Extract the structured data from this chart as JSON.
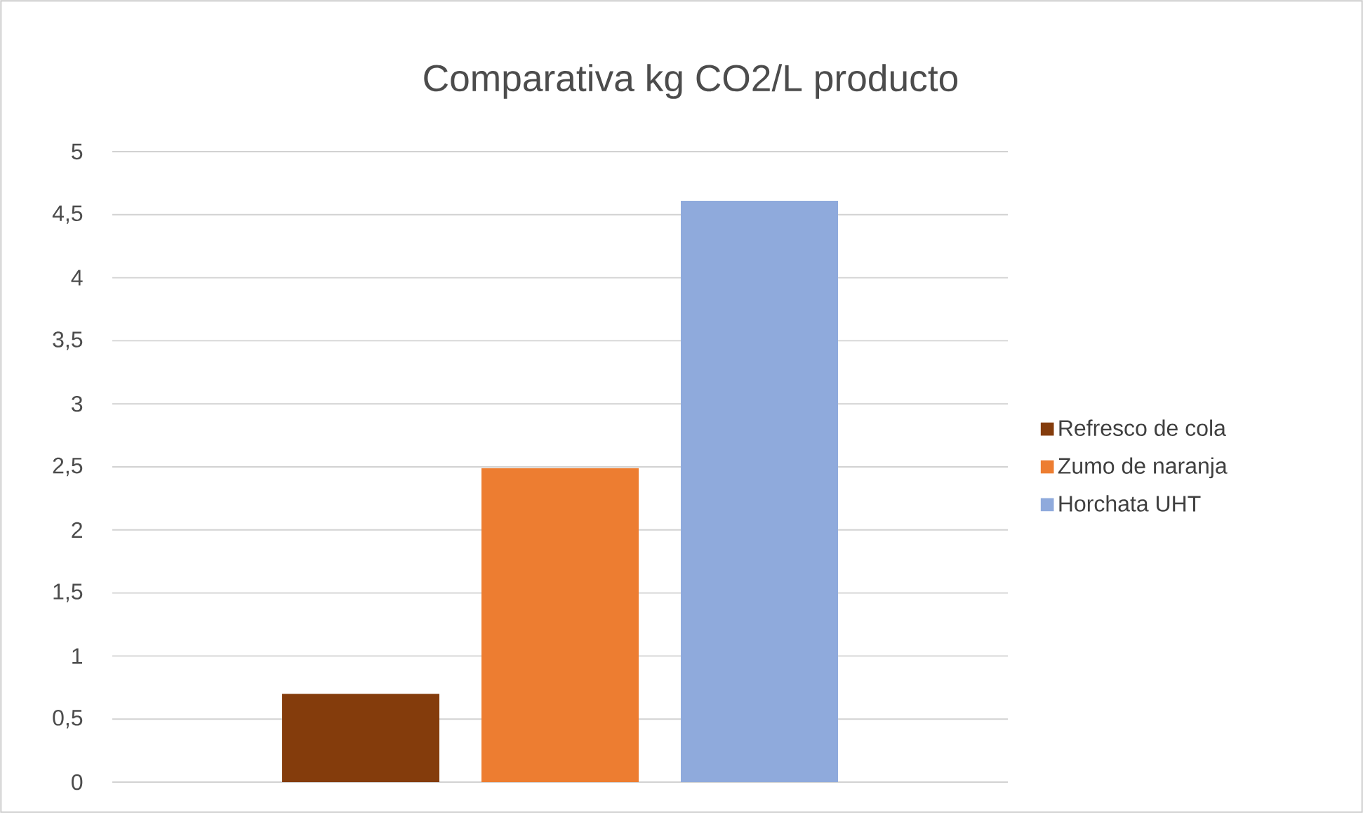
{
  "chart_data": {
    "type": "bar",
    "title": "Comparativa kg CO2/L producto",
    "categories": [
      null
    ],
    "series": [
      {
        "name": "Refresco de cola",
        "color": "#843c0c",
        "values": [
          0.7
        ]
      },
      {
        "name": "Zumo de naranja",
        "color": "#ed7d31",
        "values": [
          2.49
        ]
      },
      {
        "name": "Horchata UHT",
        "color": "#8faadc",
        "values": [
          4.61
        ]
      }
    ],
    "ylim": [
      0,
      5
    ],
    "yticks": [
      {
        "value": 0,
        "label": "0"
      },
      {
        "value": 0.5,
        "label": "0,5"
      },
      {
        "value": 1,
        "label": "1"
      },
      {
        "value": 1.5,
        "label": "1,5"
      },
      {
        "value": 2,
        "label": "2"
      },
      {
        "value": 2.5,
        "label": "2,5"
      },
      {
        "value": 3,
        "label": "3"
      },
      {
        "value": 3.5,
        "label": "3,5"
      },
      {
        "value": 4,
        "label": "4"
      },
      {
        "value": 4.5,
        "label": "4,5"
      },
      {
        "value": 5,
        "label": "5"
      }
    ],
    "grid": "y",
    "legend": "right"
  }
}
